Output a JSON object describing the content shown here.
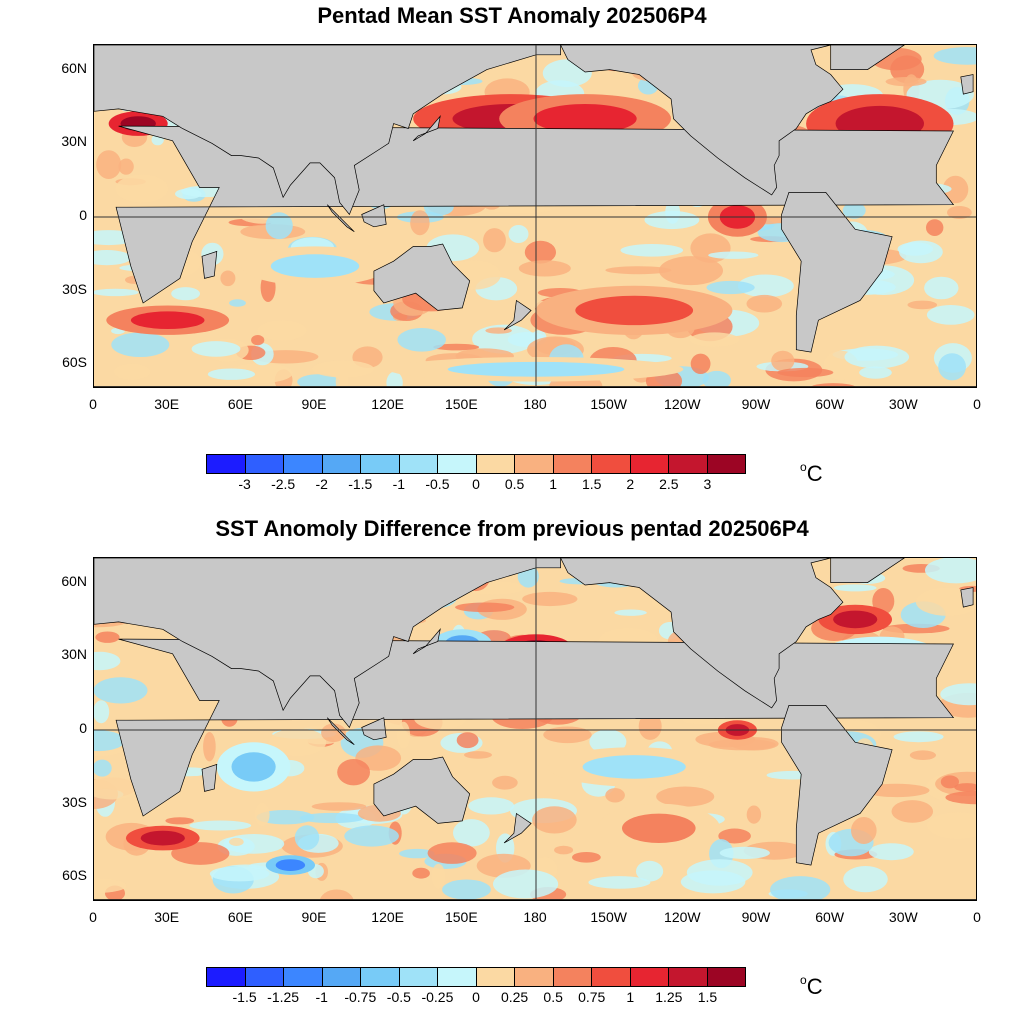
{
  "colors": {
    "land": "#c8c8c8",
    "palette": [
      "#1c1cff",
      "#2f5fff",
      "#3c86ff",
      "#55a8f5",
      "#78cbf7",
      "#9fe2f8",
      "#c6f6fb",
      "#fbd9a3",
      "#f9b180",
      "#f4825e",
      "#f04e3e",
      "#e72531",
      "#c4162e",
      "#9c0524"
    ]
  },
  "chart_data": [
    {
      "type": "map",
      "title": "Pentad Mean SST Anomaly 202506P4",
      "lat_labels": [
        "60N",
        "30N",
        "0",
        "30S",
        "60S"
      ],
      "lon_labels": [
        "0",
        "30E",
        "60E",
        "90E",
        "120E",
        "150E",
        "180",
        "150W",
        "120W",
        "90W",
        "60W",
        "30W",
        "0"
      ],
      "colorbar_ticks": [
        "-3",
        "-2.5",
        "-2",
        "-1.5",
        "-1",
        "-0.5",
        "0",
        "0.5",
        "1",
        "1.5",
        "2",
        "2.5",
        "3"
      ],
      "units": "C",
      "features": [
        {
          "lon": 170,
          "lat": 40,
          "level": 12,
          "spread_lon": 40,
          "spread_lat": 10
        },
        {
          "lon": 200,
          "lat": 40,
          "level": 11,
          "spread_lon": 35,
          "spread_lat": 10
        },
        {
          "lon": 320,
          "lat": 38,
          "level": 12,
          "spread_lon": 30,
          "spread_lat": 12
        },
        {
          "lon": 18,
          "lat": 38,
          "level": 13,
          "spread_lon": 12,
          "spread_lat": 5
        },
        {
          "lon": 220,
          "lat": -38,
          "level": 10,
          "spread_lon": 40,
          "spread_lat": 10
        },
        {
          "lon": 30,
          "lat": -42,
          "level": 11,
          "spread_lon": 25,
          "spread_lat": 6
        },
        {
          "lon": 262,
          "lat": 0,
          "level": 11,
          "spread_lon": 12,
          "spread_lat": 8
        },
        {
          "lon": 240,
          "lat": 20,
          "level": 5,
          "spread_lon": 25,
          "spread_lat": 10
        },
        {
          "lon": 180,
          "lat": -62,
          "level": 5,
          "spread_lon": 60,
          "spread_lat": 5
        },
        {
          "lon": 90,
          "lat": -20,
          "level": 5,
          "spread_lon": 30,
          "spread_lat": 8
        }
      ]
    },
    {
      "type": "map",
      "title": "SST Anomoly Difference from previous pentad 202506P4",
      "lat_labels": [
        "60N",
        "30N",
        "0",
        "30S",
        "60S"
      ],
      "lon_labels": [
        "0",
        "30E",
        "60E",
        "90E",
        "120E",
        "150E",
        "180",
        "150W",
        "120W",
        "90W",
        "60W",
        "30W",
        "0"
      ],
      "colorbar_ticks": [
        "-1.5",
        "-1.25",
        "-1",
        "-0.75",
        "-0.5",
        "-0.25",
        "0",
        "0.25",
        "0.5",
        "0.75",
        "1",
        "1.25",
        "1.5"
      ],
      "units": "C",
      "features": [
        {
          "lon": 180,
          "lat": 33,
          "level": 13,
          "spread_lon": 15,
          "spread_lat": 6
        },
        {
          "lon": 150,
          "lat": 35,
          "level": 3,
          "spread_lon": 12,
          "spread_lat": 6
        },
        {
          "lon": 310,
          "lat": 45,
          "level": 12,
          "spread_lon": 15,
          "spread_lat": 6
        },
        {
          "lon": 28,
          "lat": -44,
          "level": 12,
          "spread_lon": 15,
          "spread_lat": 5
        },
        {
          "lon": 65,
          "lat": -15,
          "level": 4,
          "spread_lon": 15,
          "spread_lat": 10
        },
        {
          "lon": 220,
          "lat": -15,
          "level": 5,
          "spread_lon": 35,
          "spread_lat": 8
        },
        {
          "lon": 230,
          "lat": -40,
          "level": 9,
          "spread_lon": 25,
          "spread_lat": 10
        },
        {
          "lon": 262,
          "lat": 0,
          "level": 12,
          "spread_lon": 8,
          "spread_lat": 4
        },
        {
          "lon": 80,
          "lat": -55,
          "level": 2,
          "spread_lon": 10,
          "spread_lat": 4
        },
        {
          "lon": 320,
          "lat": 30,
          "level": 8,
          "spread_lon": 25,
          "spread_lat": 8
        }
      ]
    }
  ]
}
